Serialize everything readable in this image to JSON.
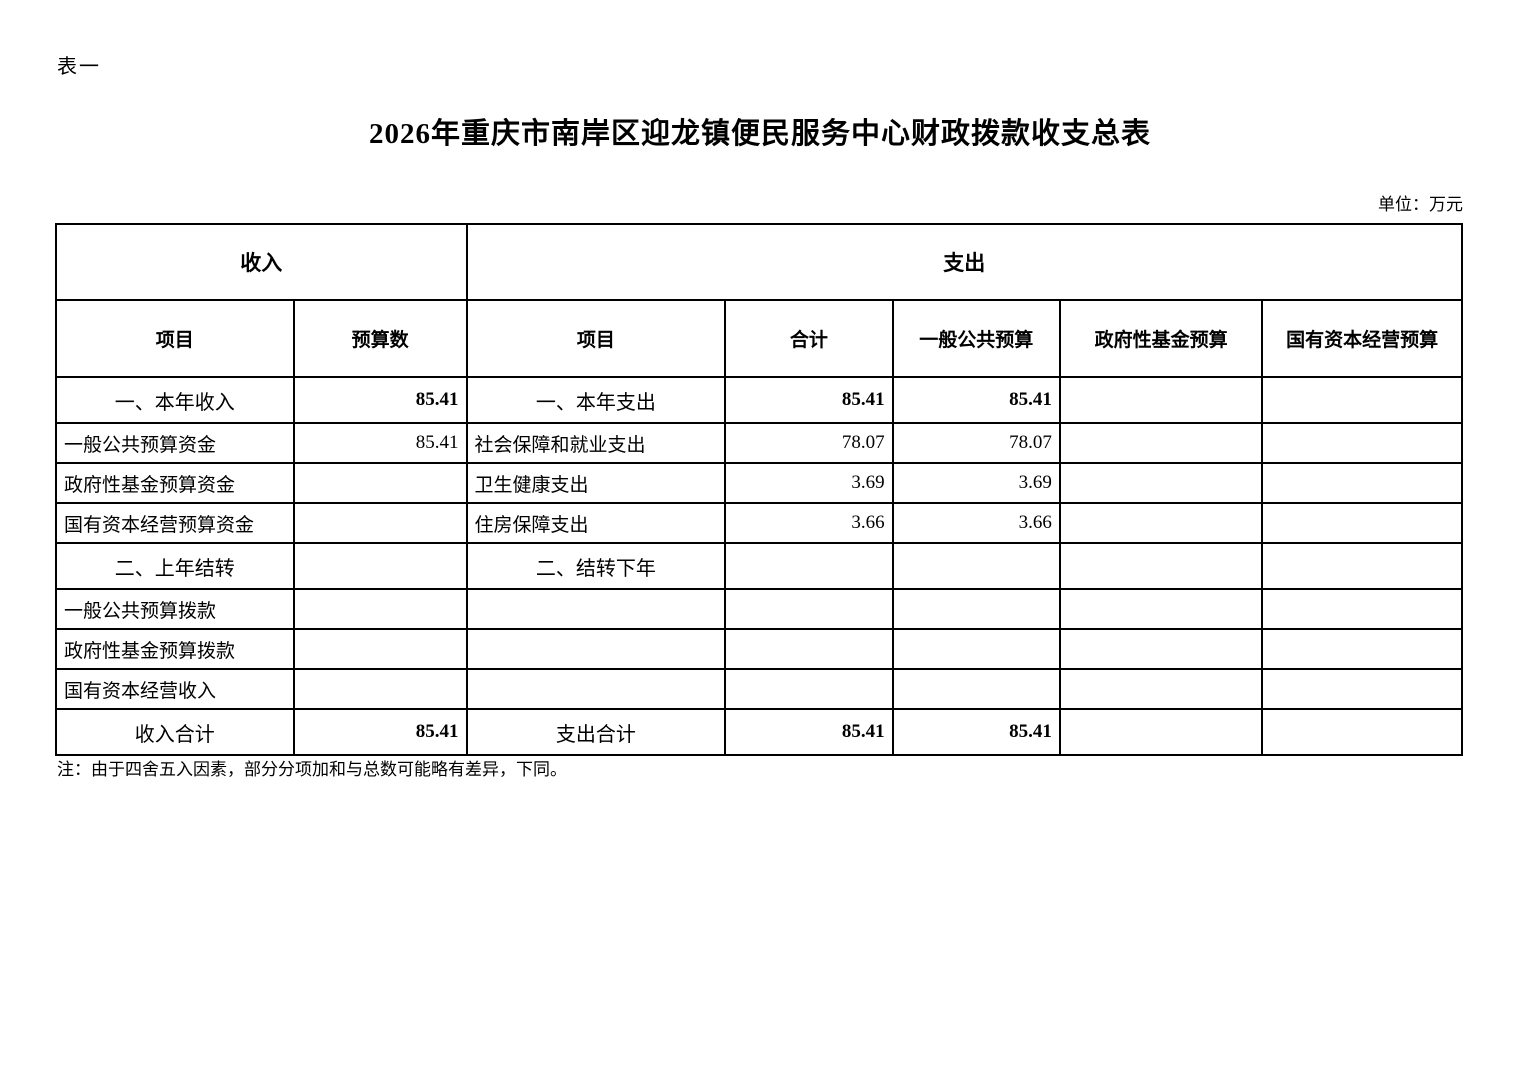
{
  "page": {
    "table_label": "表一",
    "title": "2026年重庆市南岸区迎龙镇便民服务中心财政拨款收支总表",
    "unit_label": "单位：万元",
    "footnote": "注：由于四舍五入因素，部分分项加和与总数可能略有差异，下同。"
  },
  "table": {
    "group_headers": [
      {
        "label": "收入",
        "colspan": 2
      },
      {
        "label": "支出",
        "colspan": 5
      }
    ],
    "column_headers": [
      "项目",
      "预算数",
      "项目",
      "合计",
      "一般公共预算",
      "政府性基金预算",
      "国有资本经营预算"
    ],
    "rows": [
      {
        "type": "category",
        "cells": [
          "一、本年收入",
          "85.41",
          "一、本年支出",
          "85.41",
          "85.41",
          "",
          ""
        ]
      },
      {
        "type": "item",
        "cells": [
          "一般公共预算资金",
          "85.41",
          "社会保障和就业支出",
          "78.07",
          "78.07",
          "",
          ""
        ]
      },
      {
        "type": "item",
        "cells": [
          "政府性基金预算资金",
          "",
          "卫生健康支出",
          "3.69",
          "3.69",
          "",
          ""
        ]
      },
      {
        "type": "item",
        "cells": [
          "国有资本经营预算资金",
          "",
          "住房保障支出",
          "3.66",
          "3.66",
          "",
          ""
        ]
      },
      {
        "type": "category",
        "cells": [
          "二、上年结转",
          "",
          "二、结转下年",
          "",
          "",
          "",
          ""
        ]
      },
      {
        "type": "item",
        "cells": [
          "一般公共预算拨款",
          "",
          "",
          "",
          "",
          "",
          ""
        ]
      },
      {
        "type": "item",
        "cells": [
          "政府性基金预算拨款",
          "",
          "",
          "",
          "",
          "",
          ""
        ]
      },
      {
        "type": "item",
        "cells": [
          "国有资本经营收入",
          "",
          "",
          "",
          "",
          "",
          ""
        ]
      },
      {
        "type": "total",
        "cells": [
          "收入合计",
          "85.41",
          "支出合计",
          "85.41",
          "85.41",
          "",
          ""
        ]
      }
    ]
  },
  "colors": {
    "text": "#000000",
    "border": "#000000",
    "background": "#ffffff"
  }
}
